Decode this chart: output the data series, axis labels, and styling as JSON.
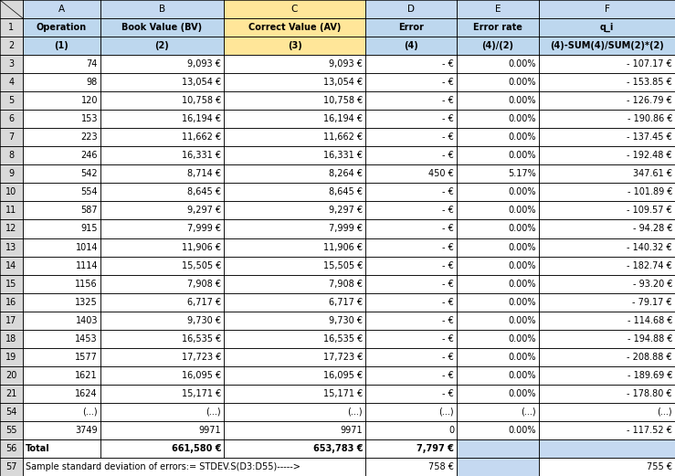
{
  "col_letters": [
    "A",
    "B",
    "C",
    "D",
    "E",
    "F"
  ],
  "row1": [
    "Operation",
    "Book Value (BV)",
    "Correct Value (AV)",
    "Error",
    "Error rate",
    "q_i"
  ],
  "row2": [
    "(1)",
    "(2)",
    "(3)",
    "(4)",
    "(4)/(2)",
    "(4)-SUM(4)/SUM(2)*(2)"
  ],
  "rows": [
    [
      "3",
      "74",
      "9,093 €",
      "9,093 €",
      "- €",
      "0.00%",
      "- 107.17 €"
    ],
    [
      "4",
      "98",
      "13,054 €",
      "13,054 €",
      "- €",
      "0.00%",
      "- 153.85 €"
    ],
    [
      "5",
      "120",
      "10,758 €",
      "10,758 €",
      "- €",
      "0.00%",
      "- 126.79 €"
    ],
    [
      "6",
      "153",
      "16,194 €",
      "16,194 €",
      "- €",
      "0.00%",
      "- 190.86 €"
    ],
    [
      "7",
      "223",
      "11,662 €",
      "11,662 €",
      "- €",
      "0.00%",
      "- 137.45 €"
    ],
    [
      "8",
      "246",
      "16,331 €",
      "16,331 €",
      "- €",
      "0.00%",
      "- 192.48 €"
    ],
    [
      "9",
      "542",
      "8,714 €",
      "8,264 €",
      "450 €",
      "5.17%",
      "347.61 €"
    ],
    [
      "10",
      "554",
      "8,645 €",
      "8,645 €",
      "- €",
      "0.00%",
      "- 101.89 €"
    ],
    [
      "11",
      "587",
      "9,297 €",
      "9,297 €",
      "- €",
      "0.00%",
      "- 109.57 €"
    ],
    [
      "12",
      "915",
      "7,999 €",
      "7,999 €",
      "- €",
      "0.00%",
      "- 94.28 €"
    ],
    [
      "13",
      "1014",
      "11,906 €",
      "11,906 €",
      "- €",
      "0.00%",
      "- 140.32 €"
    ],
    [
      "14",
      "1114",
      "15,505 €",
      "15,505 €",
      "- €",
      "0.00%",
      "- 182.74 €"
    ],
    [
      "15",
      "1156",
      "7,908 €",
      "7,908 €",
      "- €",
      "0.00%",
      "- 93.20 €"
    ],
    [
      "16",
      "1325",
      "6,717 €",
      "6,717 €",
      "- €",
      "0.00%",
      "- 79.17 €"
    ],
    [
      "17",
      "1403",
      "9,730 €",
      "9,730 €",
      "- €",
      "0.00%",
      "- 114.68 €"
    ],
    [
      "18",
      "1453",
      "16,535 €",
      "16,535 €",
      "- €",
      "0.00%",
      "- 194.88 €"
    ],
    [
      "19",
      "1577",
      "17,723 €",
      "17,723 €",
      "- €",
      "0.00%",
      "- 208.88 €"
    ],
    [
      "20",
      "1621",
      "16,095 €",
      "16,095 €",
      "- €",
      "0.00%",
      "- 189.69 €"
    ],
    [
      "21",
      "1624",
      "15,171 €",
      "15,171 €",
      "- €",
      "0.00%",
      "- 178.80 €"
    ],
    [
      "54",
      "(...)",
      "(...)",
      "(...)",
      "(...)",
      "(...)",
      "(...)"
    ],
    [
      "55",
      "3749",
      "9971",
      "9971",
      "0",
      "0.00%",
      "- 117.52 €"
    ]
  ],
  "row56_num": "56",
  "row56": [
    "Total",
    "661,580 €",
    "653,783 €",
    "7,797 €",
    "",
    ""
  ],
  "row57_num": "57",
  "row57_text": "Sample standard deviation of errors:= STDEV.S(D3:D55)----->",
  "row57_d": "758 €",
  "row57_f": "755 €",
  "col_yellow": "#FFE699",
  "col_blue_light": "#C5D9F1",
  "col_header_bg": "#BDD7EE",
  "row_num_bg": "#D9D9D9",
  "grid_color": "#7F7F7F",
  "total_rows": 26,
  "fig_width": 7.39,
  "fig_height": 5.21,
  "dpi": 100
}
